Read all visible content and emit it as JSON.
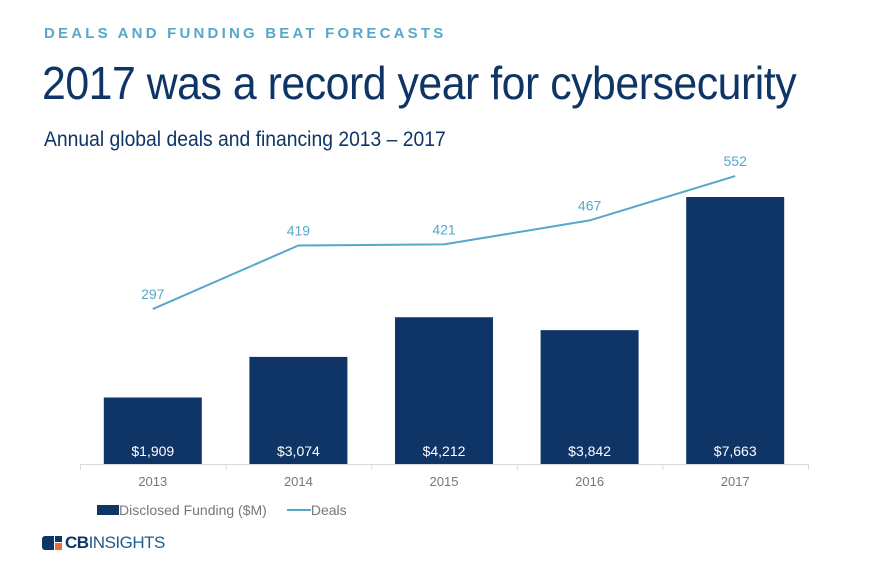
{
  "kicker": "DEALS AND FUNDING BEAT FORECASTS",
  "title": "2017 was a record year for cybersecurity",
  "subtitle": "Annual global deals and financing 2013 – 2017",
  "chart_data": {
    "type": "bar",
    "title": "Annual global deals and financing 2013 – 2017",
    "categories": [
      "2013",
      "2014",
      "2015",
      "2016",
      "2017"
    ],
    "series": [
      {
        "name": "Disclosed Funding ($M)",
        "type": "bar",
        "color": "#0e3566",
        "values": [
          1909,
          3074,
          4212,
          3842,
          7663
        ],
        "labels": [
          "$1,909",
          "$3,074",
          "$4,212",
          "$3,842",
          "$7,663"
        ]
      },
      {
        "name": "Deals",
        "type": "line",
        "color": "#56a8c9",
        "values": [
          297,
          419,
          421,
          467,
          552
        ],
        "labels": [
          "297",
          "419",
          "421",
          "467",
          "552"
        ]
      }
    ],
    "xlabel": "",
    "ylabel": "",
    "grid": false,
    "legend": "bottom-left"
  },
  "legend": {
    "funding_label": "Disclosed Funding ($M)",
    "deals_label": "Deals"
  },
  "logo": {
    "cb": "CB",
    "insights": "INSIGHTS"
  }
}
